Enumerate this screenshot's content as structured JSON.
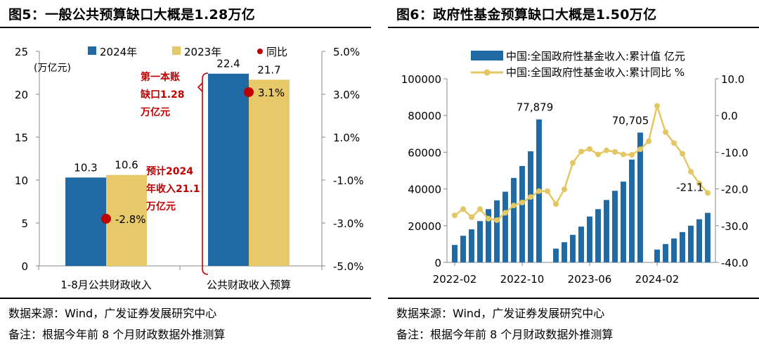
{
  "left": {
    "title": "图5：一般公共预算缺口大概是1.28万亿",
    "source": "数据来源：Wind，广发证券发展研究中心",
    "remark": "备注：根据今年前 8 个月财政数据外推测算"
  },
  "right": {
    "title": "图6：政府性基金预算缺口大概是1.50万亿",
    "source": "数据来源：Wind，广发证券发展研究中心",
    "remark": "备注：根据今年前 8 个月财政数据外推测算"
  },
  "chart_data": [
    {
      "type": "bar",
      "title": "图5：一般公共预算缺口大概是1.28万亿",
      "ylabel": "(万亿元)",
      "ylim": [
        0,
        25
      ],
      "y_ticks": [
        "25",
        "20",
        "15",
        "10",
        "5",
        "0"
      ],
      "y2lim": [
        -5.0,
        5.0
      ],
      "y2_ticks": [
        "5.0%",
        "3.0%",
        "1.0%",
        "-1.0%",
        "-3.0%",
        "-5.0%"
      ],
      "categories": [
        "1-8月公共财政收入",
        "公共财政收入预算"
      ],
      "series": [
        {
          "name": "2024年",
          "values": [
            10.3,
            22.4
          ],
          "labels": [
            "10.3",
            "22.4"
          ],
          "color": "#1f6aa5"
        },
        {
          "name": "2023年",
          "values": [
            10.6,
            21.7
          ],
          "labels": [
            "10.6",
            "21.7"
          ],
          "color": "#e8c96a"
        }
      ],
      "yoy": {
        "name": "同比",
        "values": [
          -2.8,
          3.1
        ],
        "labels": [
          "-2.8%",
          "3.1%"
        ],
        "color": "#c00000"
      },
      "annotations": [
        {
          "lines": [
            "第一本账",
            "缺口1.28",
            "万亿元"
          ],
          "color": "#c00000"
        },
        {
          "lines": [
            "预计2024",
            "年收入21.1",
            "万亿元"
          ],
          "color": "#c00000"
        }
      ],
      "legend_position": "top"
    },
    {
      "type": "bar",
      "title": "图6：政府性基金预算缺口大概是1.50万亿",
      "ylim": [
        0,
        100000
      ],
      "y_ticks": [
        "100000",
        "80000",
        "60000",
        "40000",
        "20000",
        "0"
      ],
      "y2lim": [
        -40,
        10
      ],
      "y2_ticks": [
        "10.0",
        "0.0",
        "-10.0",
        "-20.0",
        "-30.0",
        "-40.0"
      ],
      "x_tick_labels": [
        "2022-02",
        "2022-10",
        "2023-06",
        "2024-02"
      ],
      "x": [
        "2022-02",
        "2022-03",
        "2022-04",
        "2022-05",
        "2022-06",
        "2022-07",
        "2022-08",
        "2022-09",
        "2022-10",
        "2022-11",
        "2022-12",
        "2023-01",
        "2023-02",
        "2023-03",
        "2023-04",
        "2023-05",
        "2023-06",
        "2023-07",
        "2023-08",
        "2023-09",
        "2023-10",
        "2023-11",
        "2023-12",
        "2024-01",
        "2024-02",
        "2024-03",
        "2024-04",
        "2024-05",
        "2024-06",
        "2024-07",
        "2024-08"
      ],
      "series": [
        {
          "name": "中国:全国政府性基金收入:累计值 亿元",
          "color": "#1f6aa5",
          "values": [
            9500,
            14500,
            18000,
            22500,
            29000,
            33800,
            38500,
            46000,
            52500,
            60500,
            77879,
            null,
            7500,
            11000,
            15000,
            19500,
            25000,
            29000,
            34000,
            39000,
            44000,
            56000,
            70705,
            null,
            7000,
            10000,
            13000,
            16500,
            20000,
            23500,
            27000
          ]
        },
        {
          "name": "中国:全国政府性基金收入:累计同比 %",
          "color": "#e2c763",
          "values": [
            -27.2,
            -25.5,
            -27.7,
            -25.5,
            -28.1,
            -28.5,
            -26.5,
            -24.5,
            -23.7,
            -22.2,
            -20.6,
            -20.6,
            -24.1,
            -20.1,
            -12.9,
            -9.8,
            -9.1,
            -10.6,
            -9.5,
            -9.9,
            -10.6,
            -10.7,
            -9.2,
            -7.0,
            2.6,
            -4.5,
            -7.5,
            -10.4,
            -15.3,
            -18.5,
            -21.1
          ]
        }
      ],
      "data_labels": [
        {
          "text": "77,879"
        },
        {
          "text": "70,705"
        },
        {
          "text": "-21.1"
        }
      ],
      "legend_position": "top"
    }
  ]
}
